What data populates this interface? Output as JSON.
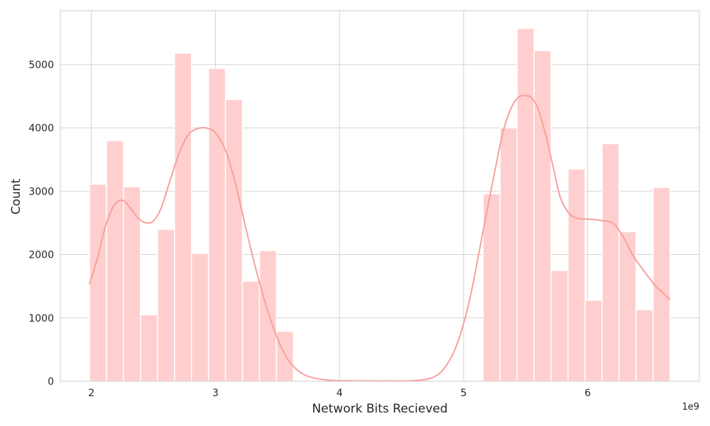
{
  "chart_data": {
    "type": "bar",
    "title": "",
    "xlabel": "Network Bits Recieved",
    "ylabel": "Count",
    "x_offset_label": "1e9",
    "xlim": [
      1.75,
      6.9
    ],
    "ylim": [
      0,
      5850
    ],
    "x_ticks": [
      2,
      3,
      4,
      5,
      6
    ],
    "x_tick_labels": [
      "2",
      "3",
      "4",
      "5",
      "6"
    ],
    "y_ticks": [
      0,
      1000,
      2000,
      3000,
      4000,
      5000
    ],
    "y_tick_labels": [
      "0",
      "1000",
      "2000",
      "3000",
      "4000",
      "5000"
    ],
    "grid": true,
    "colors": {
      "bar": "#ffcfcf",
      "bar_edge": "#ffffff",
      "kde": "#f7a09a",
      "grid": "#d3d3d3",
      "spine": "#cccccc"
    },
    "bins": [
      {
        "x0": 1.985,
        "x1": 2.122,
        "count": 3110
      },
      {
        "x0": 2.122,
        "x1": 2.259,
        "count": 3800
      },
      {
        "x0": 2.259,
        "x1": 2.396,
        "count": 3070
      },
      {
        "x0": 2.396,
        "x1": 2.533,
        "count": 1050
      },
      {
        "x0": 2.533,
        "x1": 2.67,
        "count": 2400
      },
      {
        "x0": 2.67,
        "x1": 2.807,
        "count": 5180
      },
      {
        "x0": 2.807,
        "x1": 2.944,
        "count": 2020
      },
      {
        "x0": 2.944,
        "x1": 3.081,
        "count": 4940
      },
      {
        "x0": 3.081,
        "x1": 3.218,
        "count": 4450
      },
      {
        "x0": 3.218,
        "x1": 3.355,
        "count": 1580
      },
      {
        "x0": 3.355,
        "x1": 3.492,
        "count": 2060
      },
      {
        "x0": 3.492,
        "x1": 3.629,
        "count": 790
      },
      {
        "x0": 5.157,
        "x1": 5.294,
        "count": 2960
      },
      {
        "x0": 5.294,
        "x1": 5.431,
        "count": 4000
      },
      {
        "x0": 5.431,
        "x1": 5.568,
        "count": 5570
      },
      {
        "x0": 5.568,
        "x1": 5.705,
        "count": 5220
      },
      {
        "x0": 5.705,
        "x1": 5.842,
        "count": 1750
      },
      {
        "x0": 5.842,
        "x1": 5.979,
        "count": 3350
      },
      {
        "x0": 5.979,
        "x1": 6.116,
        "count": 1280
      },
      {
        "x0": 6.116,
        "x1": 6.253,
        "count": 3750
      },
      {
        "x0": 6.253,
        "x1": 6.39,
        "count": 2360
      },
      {
        "x0": 6.39,
        "x1": 6.527,
        "count": 1130
      },
      {
        "x0": 6.527,
        "x1": 6.664,
        "count": 3060
      }
    ],
    "kde": {
      "x": [
        1.985,
        2.05,
        2.1,
        2.15,
        2.2,
        2.26,
        2.32,
        2.38,
        2.44,
        2.5,
        2.56,
        2.62,
        2.7,
        2.78,
        2.86,
        2.92,
        2.97,
        3.02,
        3.08,
        3.14,
        3.2,
        3.28,
        3.36,
        3.44,
        3.52,
        3.6,
        3.7,
        3.8,
        3.9,
        4.0,
        4.2,
        4.4,
        4.6,
        4.75,
        4.85,
        4.95,
        5.05,
        5.15,
        5.25,
        5.32,
        5.38,
        5.44,
        5.5,
        5.55,
        5.6,
        5.66,
        5.72,
        5.78,
        5.85,
        5.92,
        6.0,
        6.1,
        6.2,
        6.28,
        6.36,
        6.45,
        6.55,
        6.664
      ],
      "y": [
        1530,
        1950,
        2350,
        2650,
        2820,
        2850,
        2720,
        2570,
        2500,
        2530,
        2720,
        3080,
        3560,
        3890,
        3990,
        4000,
        3970,
        3870,
        3650,
        3280,
        2800,
        2130,
        1520,
        1000,
        580,
        300,
        120,
        50,
        20,
        10,
        5,
        5,
        10,
        60,
        220,
        600,
        1300,
        2300,
        3300,
        3950,
        4300,
        4480,
        4510,
        4470,
        4300,
        3900,
        3400,
        2900,
        2650,
        2570,
        2560,
        2540,
        2500,
        2300,
        2000,
        1750,
        1500,
        1290
      ]
    }
  }
}
